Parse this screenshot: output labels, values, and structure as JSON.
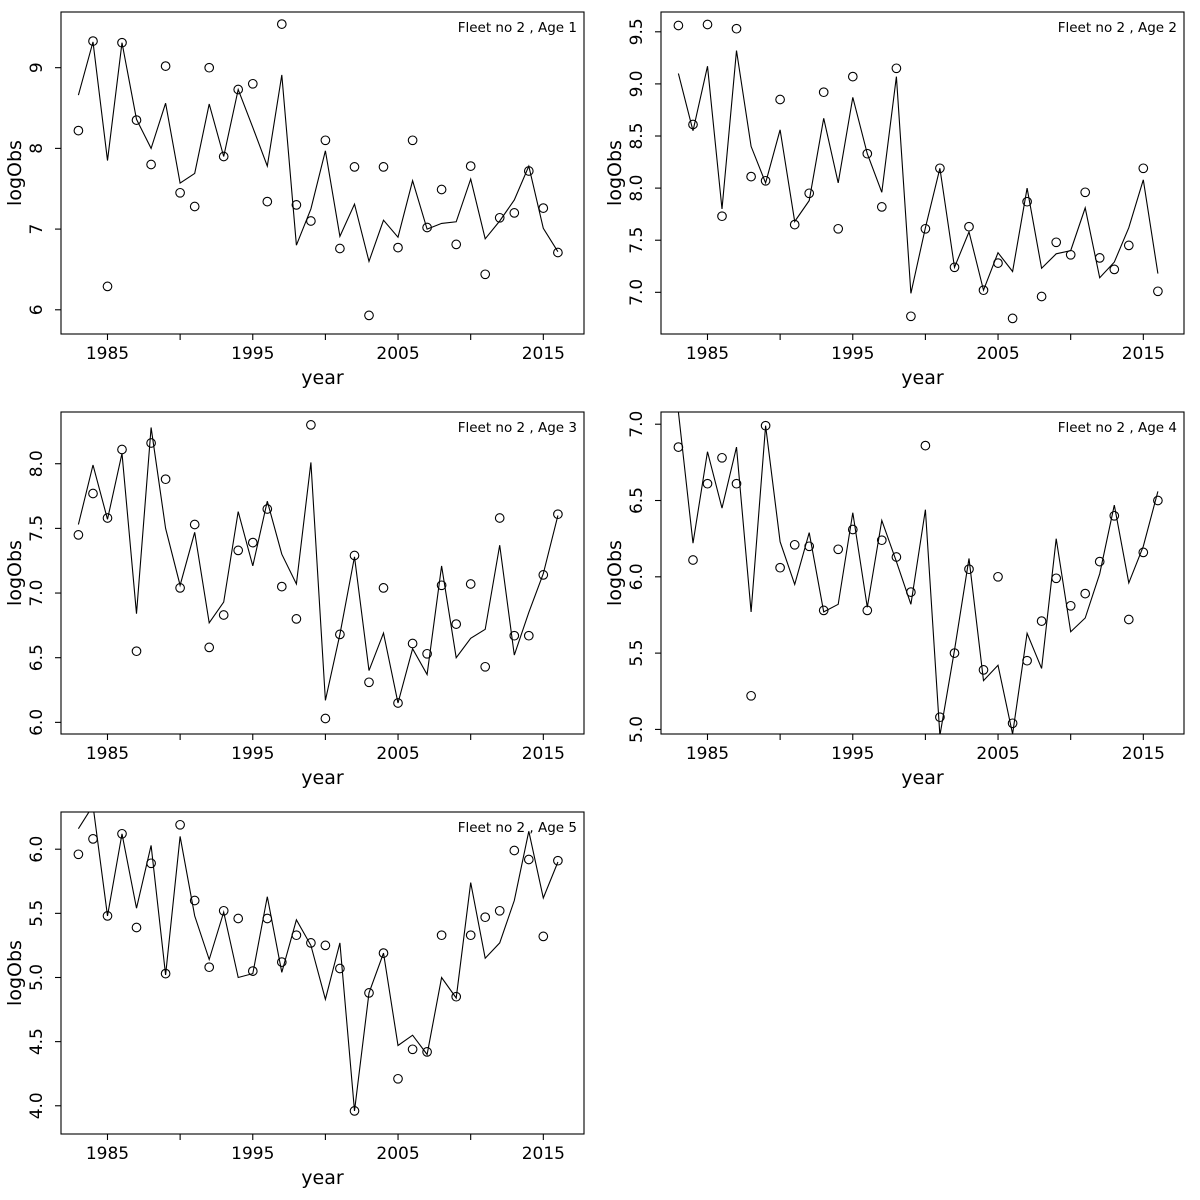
{
  "page": {
    "background": "#ffffff",
    "foreground": "#000000"
  },
  "figure": {
    "fleet_label": "Fleet no 2",
    "xlabel": "year",
    "ylabel": "logObs",
    "series_style": {
      "observed": "open-circle-marker",
      "fitted": "solid-line"
    }
  },
  "chart_data": [
    {
      "type": "line",
      "title": "Fleet no 2 , Age 1",
      "xlabel": "year",
      "ylabel": "logObs",
      "xlim": [
        1981.8,
        2017.8
      ],
      "ylim": [
        5.7,
        9.69
      ],
      "xticks": [
        1985,
        1990,
        1995,
        2000,
        2005,
        2010,
        2015
      ],
      "xtick_labels": [
        "1985",
        "",
        "1995",
        "",
        "2005",
        "",
        "2015"
      ],
      "yticks": [
        6,
        7,
        8,
        9
      ],
      "ytick_labels": [
        "6",
        "7",
        "8",
        "9"
      ],
      "grid": false,
      "legend": "none",
      "x": [
        1983,
        1984,
        1985,
        1986,
        1987,
        1988,
        1989,
        1990,
        1991,
        1992,
        1993,
        1994,
        1995,
        1996,
        1997,
        1998,
        1999,
        2000,
        2001,
        2002,
        2003,
        2004,
        2005,
        2006,
        2007,
        2008,
        2009,
        2010,
        2011,
        2012,
        2013,
        2014,
        2015,
        2016
      ],
      "series": [
        {
          "name": "observed",
          "marker": "circle",
          "values": [
            8.22,
            9.33,
            6.29,
            9.31,
            8.35,
            7.8,
            9.02,
            7.45,
            7.28,
            9.0,
            7.9,
            8.73,
            8.8,
            7.34,
            9.54,
            7.3,
            7.1,
            8.1,
            6.76,
            7.77,
            5.93,
            7.77,
            6.77,
            8.1,
            7.02,
            7.49,
            6.81,
            7.78,
            6.44,
            7.14,
            7.2,
            7.72,
            7.26,
            6.71
          ]
        },
        {
          "name": "fitted",
          "marker": "none",
          "values": [
            8.66,
            9.32,
            7.85,
            9.31,
            8.36,
            8.0,
            8.56,
            7.57,
            7.69,
            8.55,
            7.9,
            8.73,
            8.26,
            7.78,
            8.91,
            6.8,
            7.25,
            7.97,
            6.91,
            7.31,
            6.6,
            7.11,
            6.9,
            7.6,
            7.0,
            7.07,
            7.09,
            7.62,
            6.88,
            7.1,
            7.36,
            7.78,
            7.01,
            6.72
          ]
        }
      ]
    },
    {
      "type": "line",
      "title": "Fleet no 2 , Age 2",
      "xlabel": "year",
      "ylabel": "logObs",
      "xlim": [
        1981.8,
        2017.8
      ],
      "ylim": [
        6.6,
        9.69
      ],
      "xticks": [
        1985,
        1990,
        1995,
        2000,
        2005,
        2010,
        2015
      ],
      "xtick_labels": [
        "1985",
        "",
        "1995",
        "",
        "2005",
        "",
        "2015"
      ],
      "yticks": [
        7.0,
        7.5,
        8.0,
        8.5,
        9.0,
        9.5
      ],
      "ytick_labels": [
        "7.0",
        "7.5",
        "8.0",
        "8.5",
        "9.0",
        "9.5"
      ],
      "grid": false,
      "legend": "none",
      "x": [
        1983,
        1984,
        1985,
        1986,
        1987,
        1988,
        1989,
        1990,
        1991,
        1992,
        1993,
        1994,
        1995,
        1996,
        1997,
        1998,
        1999,
        2000,
        2001,
        2002,
        2003,
        2004,
        2005,
        2006,
        2007,
        2008,
        2009,
        2010,
        2011,
        2012,
        2013,
        2014,
        2015,
        2016
      ],
      "series": [
        {
          "name": "observed",
          "marker": "circle",
          "values": [
            9.56,
            8.61,
            9.57,
            7.73,
            9.53,
            8.11,
            8.07,
            8.85,
            7.65,
            7.95,
            8.92,
            7.61,
            9.07,
            8.33,
            7.82,
            9.15,
            6.77,
            7.61,
            8.19,
            7.24,
            7.63,
            7.02,
            7.28,
            6.75,
            7.87,
            6.96,
            7.48,
            7.36,
            7.96,
            7.33,
            7.22,
            7.45,
            8.19,
            7.01
          ]
        },
        {
          "name": "fitted",
          "marker": "none",
          "values": [
            9.1,
            8.55,
            9.17,
            7.8,
            9.32,
            8.4,
            8.05,
            8.56,
            7.68,
            7.88,
            8.67,
            8.05,
            8.87,
            8.33,
            7.96,
            9.07,
            6.99,
            7.62,
            8.19,
            7.24,
            7.58,
            7.02,
            7.38,
            7.2,
            8.0,
            7.23,
            7.37,
            7.4,
            7.81,
            7.14,
            7.29,
            7.62,
            8.08,
            7.18
          ]
        }
      ]
    },
    {
      "type": "line",
      "title": "Fleet no 2 , Age 3",
      "xlabel": "year",
      "ylabel": "logObs",
      "xlim": [
        1981.8,
        2017.8
      ],
      "ylim": [
        5.91,
        8.4
      ],
      "xticks": [
        1985,
        1990,
        1995,
        2000,
        2005,
        2010,
        2015
      ],
      "xtick_labels": [
        "1985",
        "",
        "1995",
        "",
        "2005",
        "",
        "2015"
      ],
      "yticks": [
        6.0,
        6.5,
        7.0,
        7.5,
        8.0
      ],
      "ytick_labels": [
        "6.0",
        "6.5",
        "7.0",
        "7.5",
        "8.0"
      ],
      "grid": false,
      "legend": "none",
      "x": [
        1983,
        1984,
        1985,
        1986,
        1987,
        1988,
        1989,
        1990,
        1991,
        1992,
        1993,
        1994,
        1995,
        1996,
        1997,
        1998,
        1999,
        2000,
        2001,
        2002,
        2003,
        2004,
        2005,
        2006,
        2007,
        2008,
        2009,
        2010,
        2011,
        2012,
        2013,
        2014,
        2015,
        2016
      ],
      "series": [
        {
          "name": "observed",
          "marker": "circle",
          "values": [
            7.45,
            7.77,
            7.58,
            8.11,
            6.55,
            8.16,
            7.88,
            7.04,
            7.53,
            6.58,
            6.83,
            7.33,
            7.39,
            7.65,
            7.05,
            6.8,
            8.3,
            6.03,
            6.68,
            7.29,
            6.31,
            7.04,
            6.15,
            6.61,
            6.53,
            7.06,
            6.76,
            7.07,
            6.43,
            7.58,
            6.67,
            6.67,
            7.14,
            7.61
          ]
        },
        {
          "name": "fitted",
          "marker": "none",
          "values": [
            7.53,
            7.99,
            7.57,
            8.08,
            6.84,
            8.28,
            7.5,
            7.06,
            7.47,
            6.77,
            6.93,
            7.63,
            7.21,
            7.71,
            7.3,
            7.07,
            8.01,
            6.17,
            6.68,
            7.28,
            6.4,
            6.69,
            6.15,
            6.57,
            6.37,
            7.21,
            6.5,
            6.65,
            6.72,
            7.37,
            6.52,
            6.85,
            7.15,
            7.6
          ]
        }
      ]
    },
    {
      "type": "line",
      "title": "Fleet no 2 , Age 4",
      "xlabel": "year",
      "ylabel": "logObs",
      "xlim": [
        1981.8,
        2017.8
      ],
      "ylim": [
        4.97,
        7.08
      ],
      "xticks": [
        1985,
        1990,
        1995,
        2000,
        2005,
        2010,
        2015
      ],
      "xtick_labels": [
        "1985",
        "",
        "1995",
        "",
        "2005",
        "",
        "2015"
      ],
      "yticks": [
        5.0,
        5.5,
        6.0,
        6.5,
        7.0
      ],
      "ytick_labels": [
        "5.0",
        "5.5",
        "6.0",
        "6.5",
        "7.0"
      ],
      "grid": false,
      "legend": "none",
      "x": [
        1983,
        1984,
        1985,
        1986,
        1987,
        1988,
        1989,
        1990,
        1991,
        1992,
        1993,
        1994,
        1995,
        1996,
        1997,
        1998,
        1999,
        2000,
        2001,
        2002,
        2003,
        2004,
        2005,
        2006,
        2007,
        2008,
        2009,
        2010,
        2011,
        2012,
        2013,
        2014,
        2015,
        2016
      ],
      "series": [
        {
          "name": "observed",
          "marker": "circle",
          "values": [
            6.85,
            6.11,
            6.61,
            6.78,
            6.61,
            5.22,
            6.99,
            6.06,
            6.21,
            6.2,
            5.78,
            6.18,
            6.31,
            5.78,
            6.24,
            6.13,
            5.9,
            6.86,
            5.08,
            5.5,
            6.05,
            5.39,
            6.0,
            5.04,
            5.45,
            5.71,
            5.99,
            5.81,
            5.89,
            6.1,
            6.4,
            5.72,
            6.16,
            6.5
          ]
        },
        {
          "name": "fitted",
          "marker": "none",
          "values": [
            7.08,
            6.22,
            6.82,
            6.45,
            6.85,
            5.77,
            6.99,
            6.23,
            5.95,
            6.29,
            5.77,
            5.82,
            6.42,
            5.8,
            6.37,
            6.1,
            5.82,
            6.44,
            4.96,
            5.52,
            6.12,
            5.32,
            5.42,
            4.97,
            5.63,
            5.4,
            6.25,
            5.64,
            5.73,
            6.02,
            6.47,
            5.96,
            6.2,
            6.56
          ]
        }
      ]
    },
    {
      "type": "line",
      "title": "Fleet no 2 , Age 5",
      "xlabel": "year",
      "ylabel": "logObs",
      "xlim": [
        1981.8,
        2017.8
      ],
      "ylim": [
        3.78,
        6.29
      ],
      "xticks": [
        1985,
        1990,
        1995,
        2000,
        2005,
        2010,
        2015
      ],
      "xtick_labels": [
        "1985",
        "",
        "1995",
        "",
        "2005",
        "",
        "2015"
      ],
      "yticks": [
        4.0,
        4.5,
        5.0,
        5.5,
        6.0
      ],
      "ytick_labels": [
        "4.0",
        "4.5",
        "5.0",
        "5.5",
        "6.0"
      ],
      "grid": false,
      "legend": "none",
      "x": [
        1983,
        1984,
        1985,
        1986,
        1987,
        1988,
        1989,
        1990,
        1991,
        1992,
        1993,
        1994,
        1995,
        1996,
        1997,
        1998,
        1999,
        2000,
        2001,
        2002,
        2003,
        2004,
        2005,
        2006,
        2007,
        2008,
        2009,
        2010,
        2011,
        2012,
        2013,
        2014,
        2015,
        2016
      ],
      "series": [
        {
          "name": "observed",
          "marker": "circle",
          "values": [
            5.96,
            6.08,
            5.48,
            6.12,
            5.39,
            5.89,
            5.03,
            6.19,
            5.6,
            5.08,
            5.52,
            5.46,
            5.05,
            5.46,
            5.12,
            5.33,
            5.27,
            5.25,
            5.07,
            3.96,
            4.88,
            5.19,
            4.21,
            4.44,
            4.42,
            5.33,
            4.85,
            5.33,
            5.47,
            5.52,
            5.99,
            5.92,
            5.32,
            5.91
          ]
        },
        {
          "name": "fitted",
          "marker": "none",
          "values": [
            6.16,
            6.34,
            5.48,
            6.12,
            5.54,
            6.03,
            5.02,
            6.1,
            5.48,
            5.14,
            5.51,
            5.0,
            5.03,
            5.63,
            5.04,
            5.45,
            5.25,
            4.83,
            5.27,
            3.96,
            4.88,
            5.19,
            4.47,
            4.55,
            4.4,
            5.0,
            4.84,
            5.74,
            5.15,
            5.27,
            5.6,
            6.14,
            5.62,
            5.9
          ]
        }
      ]
    }
  ]
}
